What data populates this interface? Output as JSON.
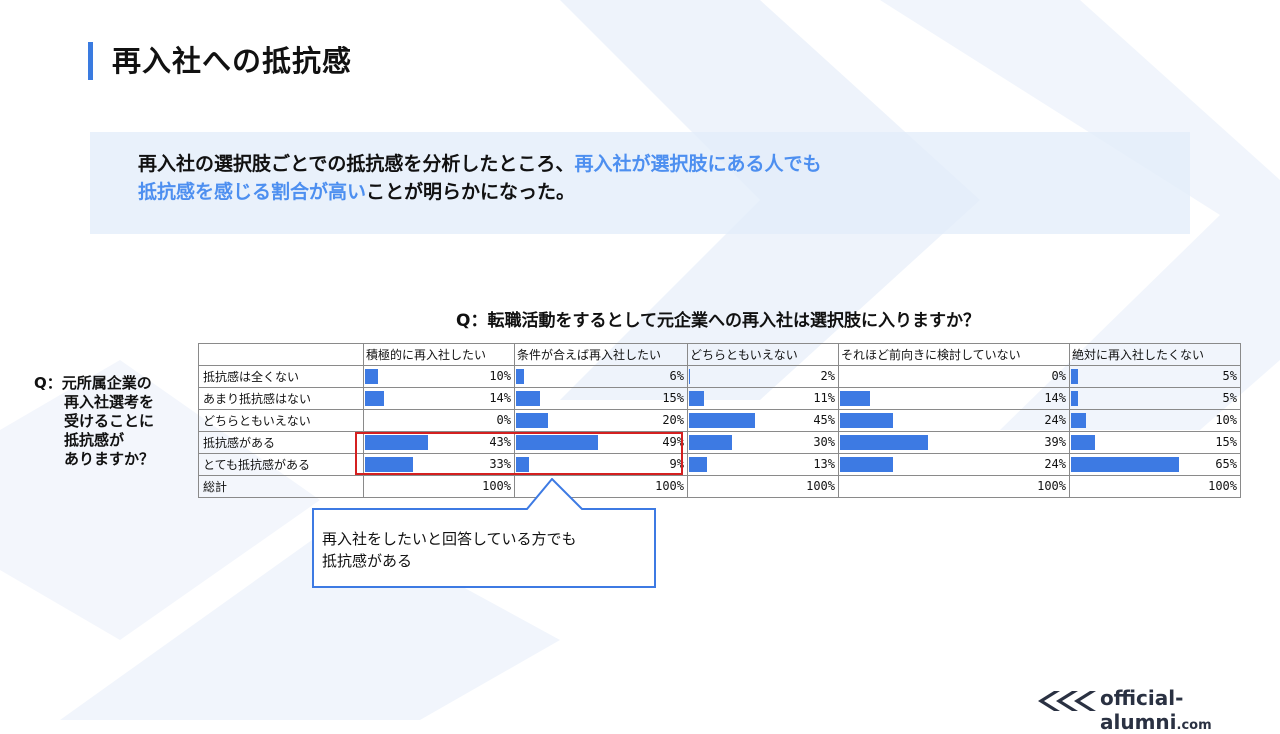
{
  "page": {
    "title": "再入社への抵抗感"
  },
  "summary": {
    "part1": "再入社の選択肢ごとでの抵抗感を分析したところ、",
    "part2": "再入社が選択肢にある人でも",
    "part3": "抵抗感を感じる割合が高い",
    "part4": "ことが明らかになった。"
  },
  "question_columns": "Q：転職活動をするとして元企業への再入社は選択肢に入りますか？",
  "question_rows": [
    "Q：元所属企業の",
    "再入社選考を",
    "受けることに",
    "抵抗感が",
    "ありますか？"
  ],
  "callout": {
    "line1": "再入社をしたいと回答している方でも",
    "line2": "抵抗感がある"
  },
  "logo": {
    "main": "official-alumni",
    "suffix": ".com"
  },
  "colors": {
    "accent": "#3a7be0",
    "bar": "#3d7ae3",
    "highlight_box": "#d42020",
    "highlight_text": "#4d8ff0"
  },
  "chart_data": {
    "type": "table",
    "columns": [
      "積極的に再入社したい",
      "条件が合えば再入社したい",
      "どちらともいえない",
      "それほど前向きに検討していない",
      "絶対に再入社したくない"
    ],
    "rows": [
      {
        "label": "抵抗感は全くない",
        "values": [
          10,
          6,
          2,
          0,
          5
        ]
      },
      {
        "label": "あまり抵抗感はない",
        "values": [
          14,
          15,
          11,
          14,
          5
        ]
      },
      {
        "label": "どちらともいえない",
        "values": [
          0,
          20,
          45,
          24,
          10
        ]
      },
      {
        "label": "抵抗感がある",
        "values": [
          43,
          49,
          30,
          39,
          15
        ]
      },
      {
        "label": "とても抵抗感がある",
        "values": [
          33,
          9,
          13,
          24,
          65
        ]
      }
    ],
    "total": {
      "label": "総計",
      "values": [
        100,
        100,
        100,
        100,
        100
      ]
    },
    "unit": "%"
  }
}
